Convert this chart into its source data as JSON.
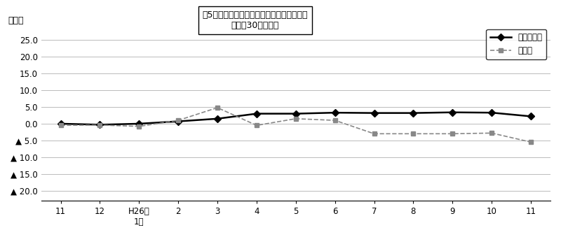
{
  "x_labels": [
    "11",
    "12",
    "H26年\n1月",
    "2",
    "3",
    "4",
    "5",
    "6",
    "7",
    "8",
    "9",
    "10",
    "11"
  ],
  "series1_label": "調査産業計",
  "series1_values": [
    0.0,
    -0.3,
    0.0,
    0.7,
    1.5,
    3.0,
    3.0,
    3.3,
    3.2,
    3.2,
    3.4,
    3.3,
    2.2
  ],
  "series2_label": "製造業",
  "series2_values": [
    -0.5,
    -0.4,
    -0.8,
    1.0,
    4.8,
    -0.5,
    1.5,
    1.0,
    -3.0,
    -3.0,
    -3.0,
    -2.8,
    -5.5
  ],
  "series1_color": "#000000",
  "series2_color": "#888888",
  "ytick_vals": [
    25.0,
    20.0,
    15.0,
    10.0,
    5.0,
    0.0,
    -5.0,
    -10.0,
    -15.0,
    -20.0
  ],
  "ytick_labels": [
    "25.0",
    "20.0",
    "15.0",
    "10.0",
    "5.0",
    "0.0",
    "▲ 5.0",
    "▲ 10.0",
    "▲ 15.0",
    "▲ 20.0"
  ],
  "ylim": [
    -23,
    28
  ],
  "ylabel": "（％）",
  "title_line1": "図5　常用労働者数の推移（対前年同月比）",
  "title_line2": "－規樨30人以上－",
  "background_color": "#ffffff",
  "grid_color": "#bbbbbb"
}
